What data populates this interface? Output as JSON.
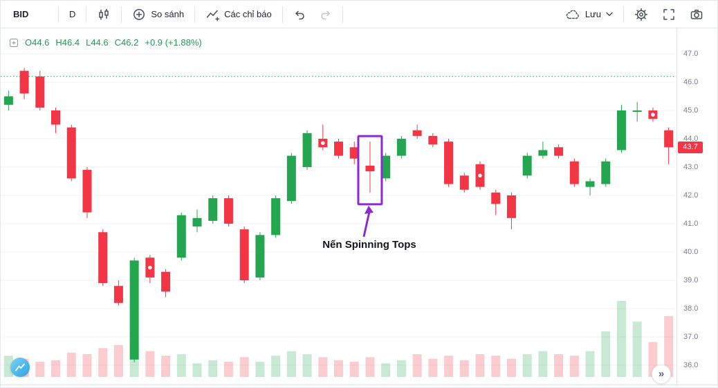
{
  "toolbar": {
    "symbol": "BID",
    "interval": "D",
    "compare_label": "So sánh",
    "indicators_label": "Các chỉ báo",
    "save_label": "Lưu"
  },
  "legend": {
    "open": "O44.6",
    "high": "H46.4",
    "low": "L44.6",
    "close": "C46.2",
    "change": "+0.9 (+1.88%)"
  },
  "annotation": {
    "label": "Nến Spinning Tops"
  },
  "price_axis": {
    "last_price": "43.7"
  },
  "controls": {
    "expand_history_icon": "»"
  },
  "colors": {
    "up": "#24a650",
    "down": "#f23645",
    "volume_opacity": 0.25,
    "annotation_purple": "#8a2bd0",
    "dotted_line": "#2aa163",
    "legend_text": "#19a04f",
    "last_price_bg": "#f23645",
    "grid": "#f0f3fa"
  },
  "chart_data": {
    "type": "candlestick",
    "symbol": "BID",
    "interval": "D",
    "y_ticks": [
      47.0,
      46.0,
      45.0,
      44.0,
      43.0,
      42.0,
      41.0,
      40.0,
      39.0,
      38.0,
      37.0,
      36.0
    ],
    "ylim": [
      35.3,
      47.9
    ],
    "grid": "horizontal",
    "dotted_line_price": 46.2,
    "last_price": 43.7,
    "marker_dot_indices": [
      9,
      20,
      30,
      41
    ],
    "annotation": {
      "target_index": 23,
      "label": "Nến Spinning Tops"
    },
    "candles": [
      {
        "o": 45.2,
        "h": 45.7,
        "l": 45.0,
        "c": 45.5,
        "v": 28
      },
      {
        "o": 46.4,
        "h": 46.5,
        "l": 45.4,
        "c": 45.6,
        "v": 24
      },
      {
        "o": 46.2,
        "h": 46.4,
        "l": 45.0,
        "c": 45.1,
        "v": 20
      },
      {
        "o": 45.0,
        "h": 45.1,
        "l": 44.2,
        "c": 44.5,
        "v": 22
      },
      {
        "o": 44.4,
        "h": 44.5,
        "l": 42.5,
        "c": 42.6,
        "v": 32
      },
      {
        "o": 42.9,
        "h": 43.0,
        "l": 41.2,
        "c": 41.4,
        "v": 30
      },
      {
        "o": 40.7,
        "h": 40.8,
        "l": 38.8,
        "c": 38.9,
        "v": 38
      },
      {
        "o": 38.8,
        "h": 39.0,
        "l": 38.1,
        "c": 38.2,
        "v": 42
      },
      {
        "o": 36.2,
        "h": 39.8,
        "l": 36.1,
        "c": 39.7,
        "v": 46
      },
      {
        "o": 39.8,
        "h": 39.9,
        "l": 38.9,
        "c": 39.1,
        "v": 34
      },
      {
        "o": 39.3,
        "h": 39.4,
        "l": 38.4,
        "c": 38.6,
        "v": 28
      },
      {
        "o": 39.8,
        "h": 41.4,
        "l": 39.7,
        "c": 41.3,
        "v": 30
      },
      {
        "o": 40.9,
        "h": 41.5,
        "l": 40.7,
        "c": 41.2,
        "v": 18
      },
      {
        "o": 41.1,
        "h": 42.0,
        "l": 41.0,
        "c": 41.9,
        "v": 22
      },
      {
        "o": 41.9,
        "h": 42.0,
        "l": 40.9,
        "c": 41.0,
        "v": 20
      },
      {
        "o": 40.8,
        "h": 40.9,
        "l": 38.9,
        "c": 39.0,
        "v": 26
      },
      {
        "o": 39.1,
        "h": 40.7,
        "l": 39.0,
        "c": 40.6,
        "v": 20
      },
      {
        "o": 40.6,
        "h": 42.0,
        "l": 40.5,
        "c": 41.9,
        "v": 28
      },
      {
        "o": 41.8,
        "h": 43.5,
        "l": 41.7,
        "c": 43.4,
        "v": 34
      },
      {
        "o": 43.0,
        "h": 44.3,
        "l": 42.9,
        "c": 44.2,
        "v": 30
      },
      {
        "o": 44.0,
        "h": 44.5,
        "l": 43.6,
        "c": 43.7,
        "v": 26
      },
      {
        "o": 43.9,
        "h": 44.0,
        "l": 43.3,
        "c": 43.4,
        "v": 22
      },
      {
        "o": 43.7,
        "h": 43.9,
        "l": 43.1,
        "c": 43.3,
        "v": 20
      },
      {
        "o": 43.05,
        "h": 43.9,
        "l": 42.1,
        "c": 42.85,
        "v": 26
      },
      {
        "o": 42.6,
        "h": 43.5,
        "l": 42.5,
        "c": 43.4,
        "v": 18
      },
      {
        "o": 43.4,
        "h": 44.1,
        "l": 43.3,
        "c": 44.0,
        "v": 22
      },
      {
        "o": 44.3,
        "h": 44.5,
        "l": 44.0,
        "c": 44.1,
        "v": 30
      },
      {
        "o": 44.1,
        "h": 44.2,
        "l": 43.7,
        "c": 43.8,
        "v": 24
      },
      {
        "o": 43.9,
        "h": 44.0,
        "l": 42.3,
        "c": 42.4,
        "v": 28
      },
      {
        "o": 42.7,
        "h": 42.8,
        "l": 42.1,
        "c": 42.2,
        "v": 22
      },
      {
        "o": 43.1,
        "h": 43.2,
        "l": 42.2,
        "c": 42.3,
        "v": 30
      },
      {
        "o": 42.1,
        "h": 42.2,
        "l": 41.3,
        "c": 41.7,
        "v": 28
      },
      {
        "o": 42.0,
        "h": 42.1,
        "l": 40.8,
        "c": 41.2,
        "v": 24
      },
      {
        "o": 42.7,
        "h": 43.5,
        "l": 42.6,
        "c": 43.4,
        "v": 30
      },
      {
        "o": 43.4,
        "h": 43.9,
        "l": 43.3,
        "c": 43.6,
        "v": 34
      },
      {
        "o": 43.7,
        "h": 43.8,
        "l": 43.3,
        "c": 43.4,
        "v": 30
      },
      {
        "o": 43.2,
        "h": 43.3,
        "l": 42.3,
        "c": 42.4,
        "v": 28
      },
      {
        "o": 42.3,
        "h": 42.6,
        "l": 42.0,
        "c": 42.5,
        "v": 34
      },
      {
        "o": 42.4,
        "h": 43.3,
        "l": 42.3,
        "c": 43.2,
        "v": 60
      },
      {
        "o": 43.6,
        "h": 45.2,
        "l": 43.5,
        "c": 45.0,
        "v": 100
      },
      {
        "o": 44.95,
        "h": 45.3,
        "l": 44.6,
        "c": 45.0,
        "v": 73
      },
      {
        "o": 45.0,
        "h": 45.1,
        "l": 44.6,
        "c": 44.7,
        "v": 46
      },
      {
        "o": 44.3,
        "h": 44.4,
        "l": 43.1,
        "c": 43.7,
        "v": 80
      }
    ]
  }
}
